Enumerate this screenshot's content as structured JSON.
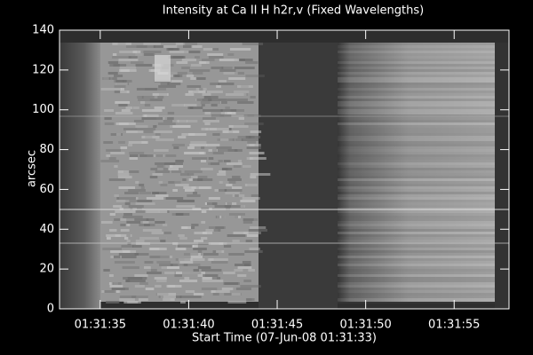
{
  "chart_data": {
    "type": "image",
    "title": "Intensity at Ca II H h2r,v (Fixed Wavelengths)",
    "x_label": "Start Time (07-Jun-08 01:31:33)",
    "y_label": "arcsec",
    "xlim": [
      32.7,
      58.1
    ],
    "xticks": [
      {
        "value": 35,
        "label": "01:31:35"
      },
      {
        "value": 40,
        "label": "01:31:40"
      },
      {
        "value": 45,
        "label": "01:31:45"
      },
      {
        "value": 50,
        "label": "01:31:50"
      },
      {
        "value": 55,
        "label": "01:31:55"
      }
    ],
    "ylim": [
      0,
      140
    ],
    "yticks": [
      0,
      20,
      40,
      60,
      80,
      100,
      120,
      140
    ]
  }
}
